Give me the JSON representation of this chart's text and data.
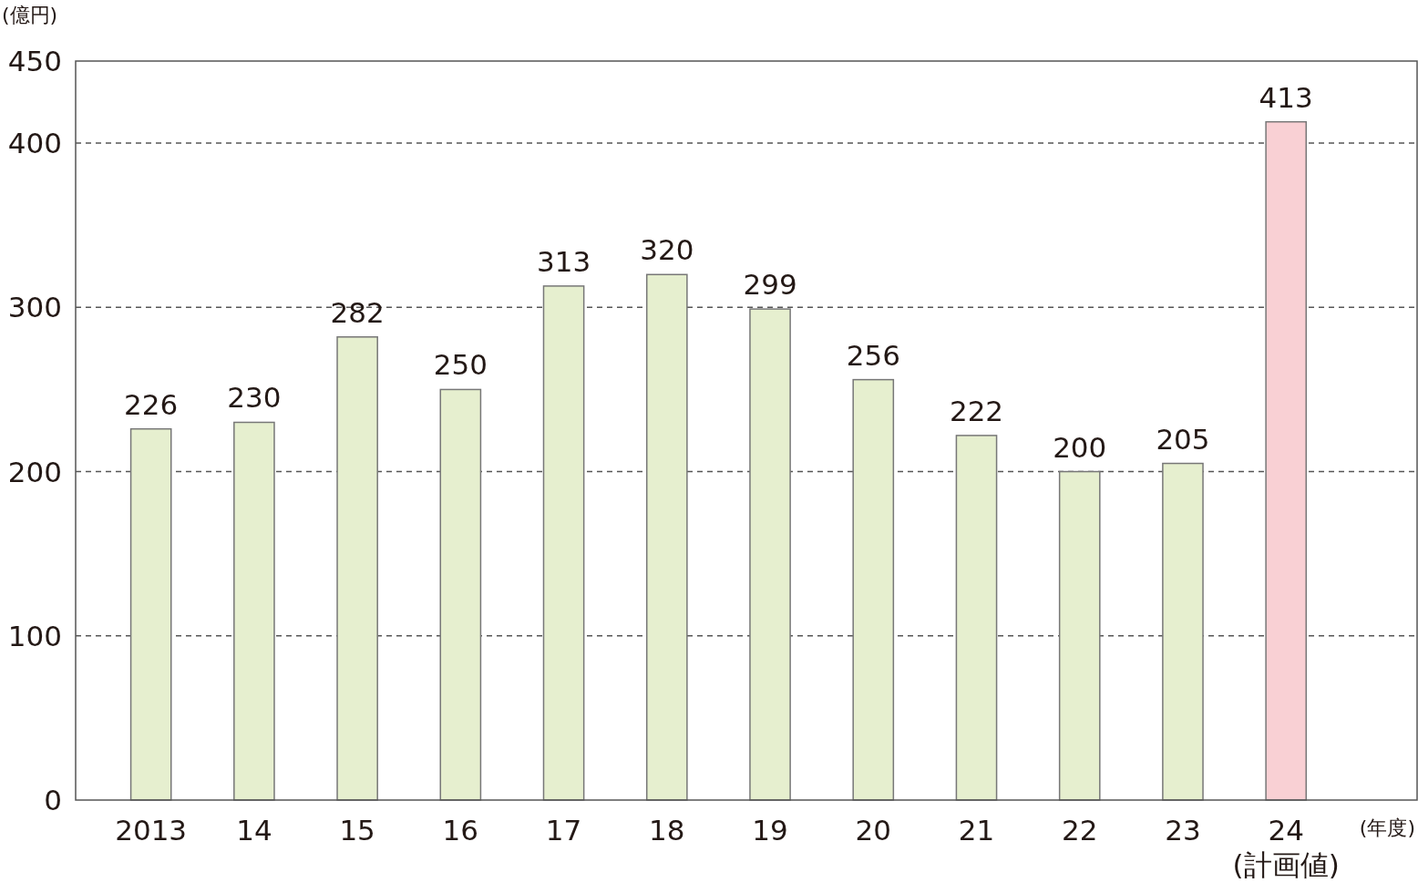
{
  "chart_data": {
    "type": "bar",
    "ylabel": "(億円)",
    "xlabel": "(年度)",
    "categories": [
      "2013",
      "14",
      "15",
      "16",
      "17",
      "18",
      "19",
      "20",
      "21",
      "22",
      "23",
      "24\n(計画値)"
    ],
    "values": [
      226,
      230,
      282,
      250,
      313,
      320,
      299,
      256,
      222,
      200,
      205,
      413
    ],
    "colors": [
      "#e6efcf",
      "#e6efcf",
      "#e6efcf",
      "#e6efcf",
      "#e6efcf",
      "#e6efcf",
      "#e6efcf",
      "#e6efcf",
      "#e6efcf",
      "#e6efcf",
      "#e6efcf",
      "#f9d0d4"
    ],
    "ylim": [
      0,
      450
    ],
    "yticks": [
      0,
      100,
      200,
      300,
      400,
      450
    ],
    "grid": "y",
    "data_labels": true
  }
}
